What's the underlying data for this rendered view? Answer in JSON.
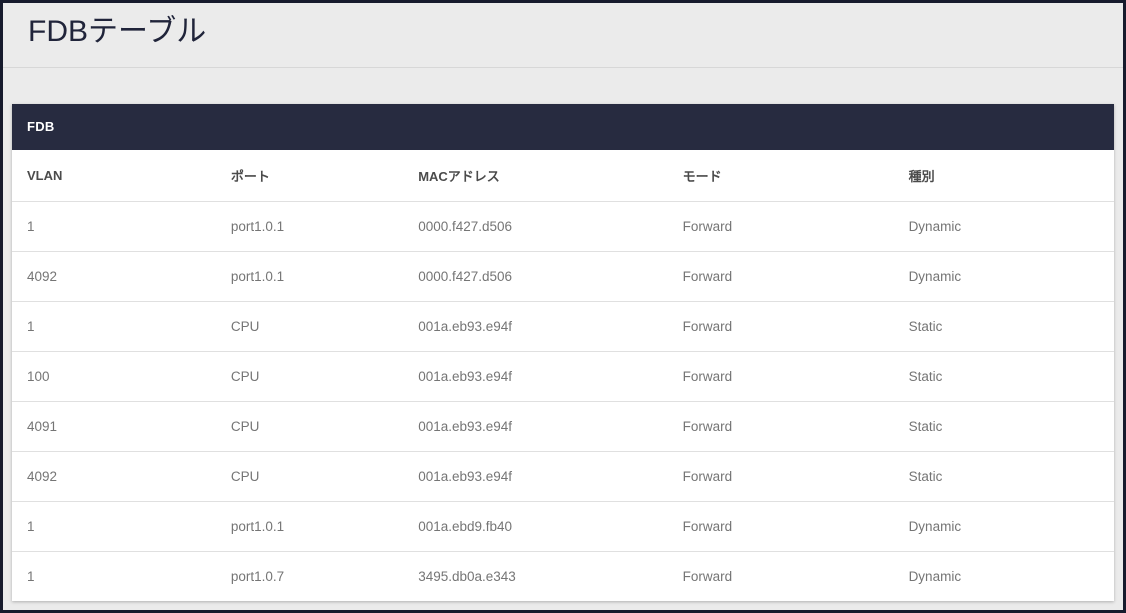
{
  "page": {
    "title": "FDBテーブル"
  },
  "panel": {
    "header_label": "FDB",
    "table": {
      "columns": [
        "VLAN",
        "ポート",
        "MACアドレス",
        "モード",
        "種別"
      ],
      "rows": [
        [
          "1",
          "port1.0.1",
          "0000.f427.d506",
          "Forward",
          "Dynamic"
        ],
        [
          "4092",
          "port1.0.1",
          "0000.f427.d506",
          "Forward",
          "Dynamic"
        ],
        [
          "1",
          "CPU",
          "001a.eb93.e94f",
          "Forward",
          "Static"
        ],
        [
          "100",
          "CPU",
          "001a.eb93.e94f",
          "Forward",
          "Static"
        ],
        [
          "4091",
          "CPU",
          "001a.eb93.e94f",
          "Forward",
          "Static"
        ],
        [
          "4092",
          "CPU",
          "001a.eb93.e94f",
          "Forward",
          "Static"
        ],
        [
          "1",
          "port1.0.1",
          "001a.ebd9.fb40",
          "Forward",
          "Dynamic"
        ],
        [
          "1",
          "port1.0.7",
          "3495.db0a.e343",
          "Forward",
          "Dynamic"
        ]
      ]
    }
  },
  "colors": {
    "panel_header_bg": "#272b40",
    "page_bg": "#ebebeb",
    "outer_border": "#171b2d",
    "cell_text": "#757575",
    "column_header_text": "#4b4b4b",
    "title_text": "#20243a",
    "row_divider": "#e0e0e0"
  }
}
